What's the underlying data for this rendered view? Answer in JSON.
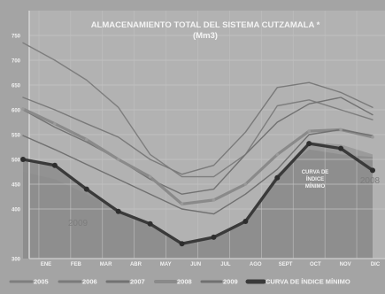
{
  "chart_data": {
    "type": "line",
    "title": "ALMACENAMIENTO TOTAL DEL SISTEMA CUTZAMALA *",
    "subtitle": "(Mm3)",
    "xlabel": "",
    "ylabel": "",
    "ylim": [
      300,
      800
    ],
    "yticks": [
      300,
      400,
      450,
      500,
      550,
      600,
      650,
      700,
      750
    ],
    "ytick_labels": [
      "300",
      "400",
      "450",
      "500",
      "550",
      "600",
      "650",
      "700",
      "750"
    ],
    "categories": [
      "ENE",
      "FEB",
      "MAR",
      "ABR",
      "MAY",
      "JUN",
      "JUL",
      "AGO",
      "SEPT",
      "OCT",
      "NOV",
      "DIC"
    ],
    "grid": true,
    "legend_position": "bottom",
    "series": [
      {
        "name": "2005",
        "color": "#7e7e7e",
        "values": [
          735,
          700,
          660,
          605,
          510,
          465,
          465,
          510,
          608,
          620,
          600,
          580
        ]
      },
      {
        "name": "2006",
        "color": "#7a7a7a",
        "values": [
          625,
          600,
          572,
          545,
          500,
          470,
          488,
          555,
          645,
          655,
          635,
          605
        ]
      },
      {
        "name": "2007",
        "color": "#727272",
        "values": [
          600,
          565,
          535,
          500,
          460,
          430,
          440,
          510,
          575,
          612,
          625,
          590
        ]
      },
      {
        "name": "2008",
        "color": "#8a8a8a",
        "values": [
          602,
          572,
          540,
          500,
          465,
          410,
          418,
          450,
          510,
          557,
          560,
          545
        ]
      },
      {
        "name": "2009",
        "color": "#707070",
        "values": [
          548,
          520,
          490,
          460,
          430,
          400,
          390,
          430,
          480,
          550,
          560,
          548
        ]
      },
      {
        "name": "CURVA DE ÍNDICE MÍNIMO",
        "color": "#3a3a3a",
        "values": [
          500,
          488,
          440,
          395,
          370,
          330,
          343,
          375,
          463,
          532,
          522,
          478
        ]
      }
    ],
    "fills": [
      {
        "label": "2009",
        "values": [
          475,
          460,
          430,
          395,
          365,
          330,
          345,
          375,
          460,
          535,
          530,
          510
        ]
      },
      {
        "label": "2008",
        "values": [
          502,
          488,
          442,
          396,
          370,
          330,
          343,
          378,
          470,
          520,
          510,
          505
        ]
      }
    ],
    "annotations": [
      {
        "text_lines": [
          "CURVA DE",
          "ÍNDICE",
          "MÍNIMO"
        ]
      }
    ]
  }
}
